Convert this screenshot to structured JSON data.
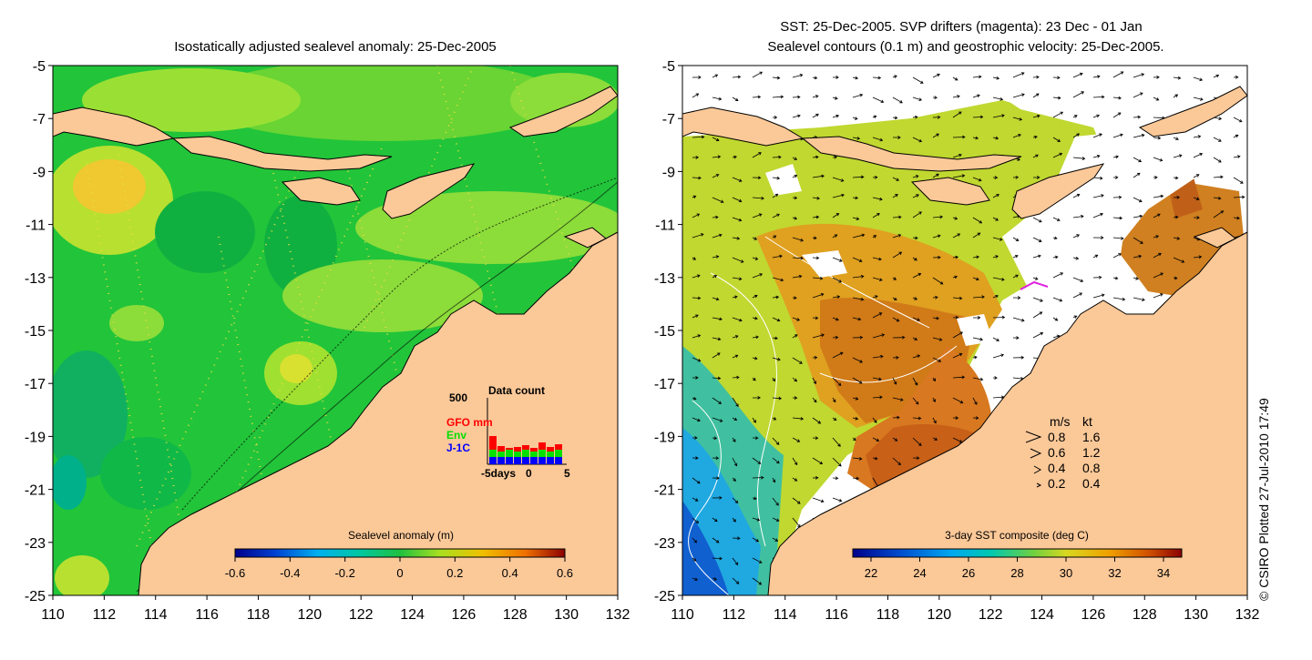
{
  "left_panel": {
    "title": "Isostatically adjusted sealevel anomaly: 25-Dec-2005",
    "y_ticks": [
      "-5",
      "-7",
      "-9",
      "-11",
      "-13",
      "-15",
      "-17",
      "-19",
      "-21",
      "-23",
      "-25"
    ],
    "x_ticks": [
      "110",
      "112",
      "114",
      "116",
      "118",
      "120",
      "122",
      "124",
      "126",
      "128",
      "130",
      "132"
    ],
    "colorbar": {
      "label": "Sealevel anomaly (m)",
      "tick_labels": [
        "-0.6",
        "-0.4",
        "-0.2",
        "0",
        "0.2",
        "0.4",
        "0.6"
      ],
      "colors": [
        "#00008c",
        "#0060e0",
        "#00b4f0",
        "#00c8a0",
        "#20c040",
        "#a8e020",
        "#f0c000",
        "#f08000",
        "#c02000",
        "#8c0000"
      ]
    },
    "inset": {
      "title": "Data count",
      "ymax_label": "500",
      "legend": [
        {
          "name": "GFO mm",
          "color": "#ff0000"
        },
        {
          "name": "Env",
          "color": "#00e000"
        },
        {
          "name": "J-1C",
          "color": "#0000ff"
        }
      ],
      "x_labels": [
        "-5days",
        "0",
        "5"
      ]
    }
  },
  "right_panel": {
    "title_line1": "SST: 25-Dec-2005. SVP drifters (magenta): 23 Dec - 01 Jan",
    "title_line2": "Sealevel contours (0.1 m) and geostrophic velocity: 25-Dec-2005.",
    "y_ticks": [
      "-5",
      "-7",
      "-9",
      "-11",
      "-13",
      "-15",
      "-17",
      "-19",
      "-21",
      "-23",
      "-25"
    ],
    "x_ticks": [
      "110",
      "112",
      "114",
      "116",
      "118",
      "120",
      "122",
      "124",
      "126",
      "128",
      "130",
      "132"
    ],
    "colorbar": {
      "label": "3-day SST composite (deg C)",
      "tick_labels": [
        "22",
        "24",
        "26",
        "28",
        "30",
        "32",
        "34"
      ],
      "colors": [
        "#00008c",
        "#0050d0",
        "#00a0f0",
        "#00c8c0",
        "#40c860",
        "#b0e020",
        "#f0c000",
        "#f08000",
        "#c03000",
        "#8c0000"
      ]
    },
    "velocity_key": {
      "header_ms": "m/s",
      "header_kt": "kt",
      "rows": [
        {
          "ms": "0.8",
          "kt": "1.6"
        },
        {
          "ms": "0.6",
          "kt": "1.2"
        },
        {
          "ms": "0.4",
          "kt": "0.8"
        },
        {
          "ms": "0.2",
          "kt": "0.4"
        }
      ]
    }
  },
  "credit": "© CSIRO Plotted 27-Jul-2010 17:49",
  "colors": {
    "land": "#fbc898",
    "coast": "#000000",
    "ocean_green": "#22c43a",
    "ocean_light": "#a4e030",
    "sst_orange": "#e09020",
    "sst_yellow": "#c8d820"
  }
}
